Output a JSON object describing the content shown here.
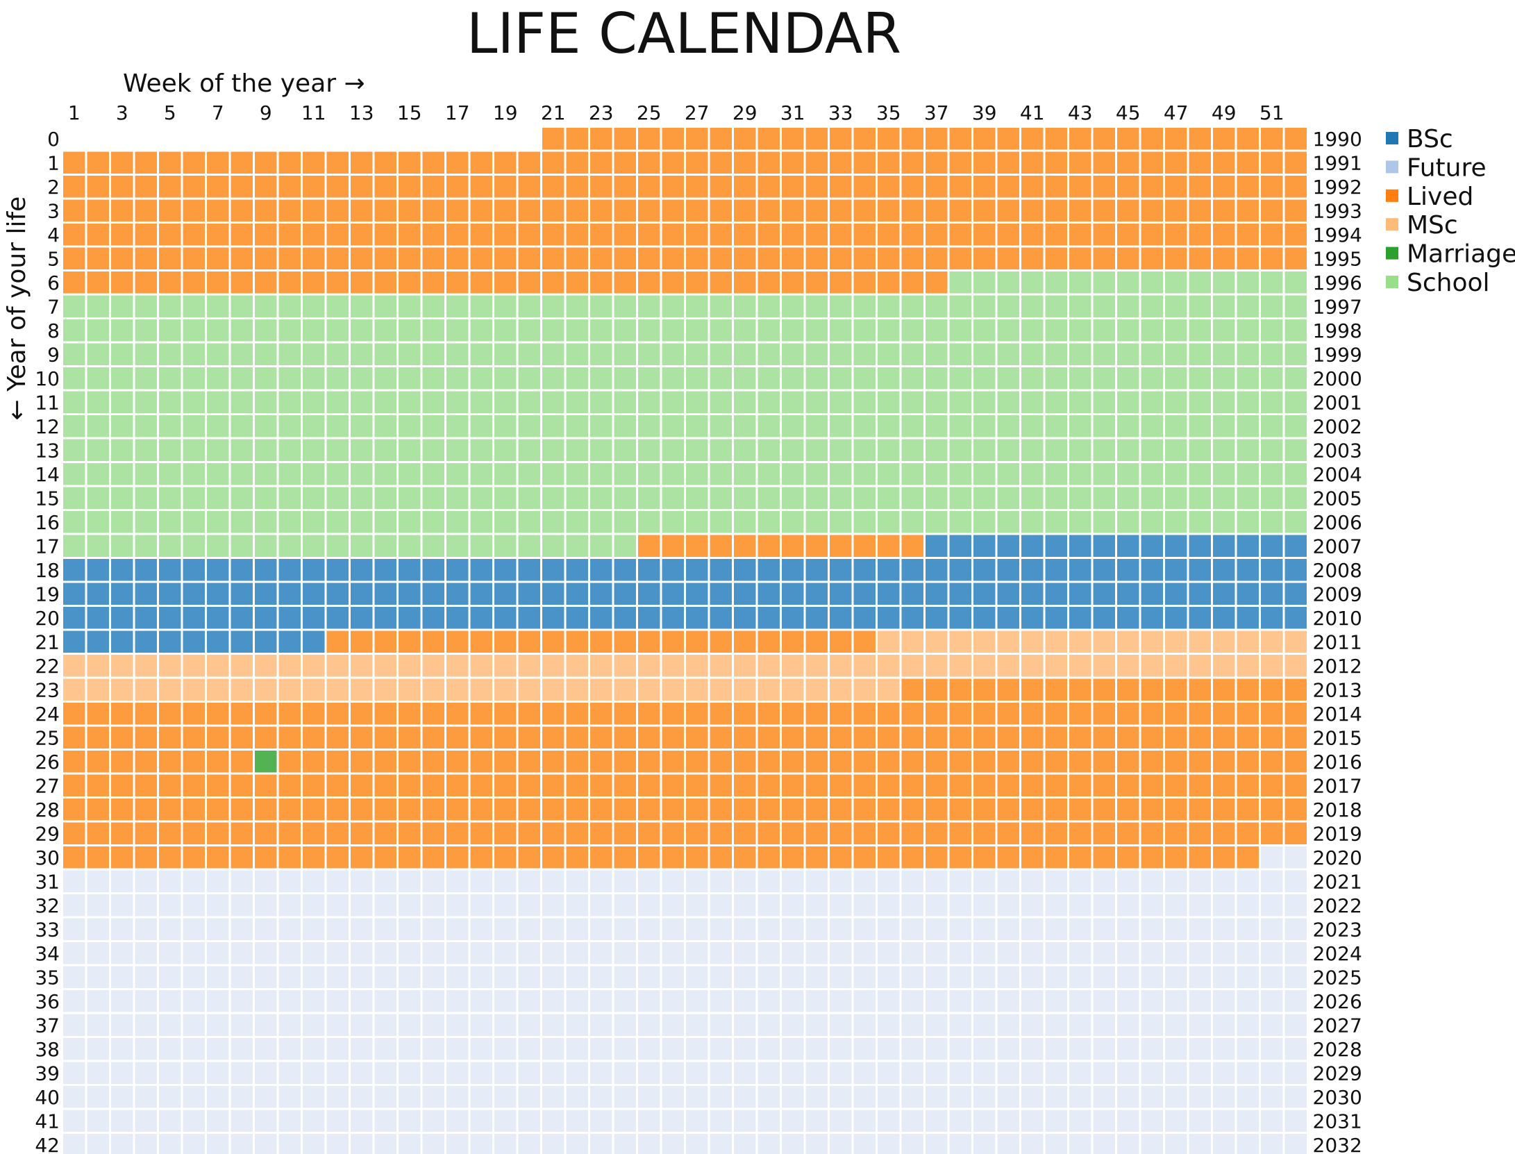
{
  "chart_data": {
    "type": "heatmap",
    "title": "LIFE CALENDAR",
    "xlabel": "Week of the year →",
    "ylabel": "← Year of your life",
    "x": {
      "min": 1,
      "max": 52,
      "tick_labels": [
        1,
        3,
        5,
        7,
        9,
        11,
        13,
        15,
        17,
        19,
        21,
        23,
        25,
        27,
        29,
        31,
        33,
        35,
        37,
        39,
        41,
        43,
        45,
        47,
        49,
        51
      ]
    },
    "y_left_labels": [
      0,
      1,
      2,
      3,
      4,
      5,
      6,
      7,
      8,
      9,
      10,
      11,
      12,
      13,
      14,
      15,
      16,
      17,
      18,
      19,
      20,
      21,
      22,
      23,
      24,
      25,
      26,
      27,
      28,
      29,
      30,
      31,
      32,
      33,
      34,
      35,
      36,
      37,
      38,
      39,
      40,
      41,
      42
    ],
    "y_right_labels": [
      1990,
      1991,
      1992,
      1993,
      1994,
      1995,
      1996,
      1997,
      1998,
      1999,
      2000,
      2001,
      2002,
      2003,
      2004,
      2005,
      2006,
      2007,
      2008,
      2009,
      2010,
      2011,
      2012,
      2013,
      2014,
      2015,
      2016,
      2017,
      2018,
      2019,
      2020,
      2021,
      2022,
      2023,
      2024,
      2025,
      2026,
      2027,
      2028,
      2029,
      2030,
      2031,
      2032
    ],
    "legend": {
      "placement": "right",
      "items": [
        {
          "name": "BSc",
          "color": "#1f77b4"
        },
        {
          "name": "Future",
          "color": "#aec7e8"
        },
        {
          "name": "Lived",
          "color": "#ff7f0e"
        },
        {
          "name": "MSc",
          "color": "#ffbb78"
        },
        {
          "name": "Marriage",
          "color": "#2ca02c"
        },
        {
          "name": "School",
          "color": "#98df8a"
        }
      ]
    },
    "cell_colors": {
      "Lived": "#fd9b3f",
      "BSc": "#4a93c8",
      "MSc": "#fec58f",
      "School": "#ace3a2",
      "Marriage": "#53b353",
      "Future": "#e6ecf7"
    },
    "periods": [
      {
        "category": "Lived",
        "start": {
          "year": 0,
          "week": 21
        },
        "end": {
          "year": 6,
          "week": 37
        }
      },
      {
        "category": "School",
        "start": {
          "year": 6,
          "week": 38
        },
        "end": {
          "year": 17,
          "week": 24
        }
      },
      {
        "category": "Lived",
        "start": {
          "year": 17,
          "week": 25
        },
        "end": {
          "year": 17,
          "week": 36
        }
      },
      {
        "category": "BSc",
        "start": {
          "year": 17,
          "week": 37
        },
        "end": {
          "year": 21,
          "week": 11
        }
      },
      {
        "category": "Lived",
        "start": {
          "year": 21,
          "week": 12
        },
        "end": {
          "year": 21,
          "week": 34
        }
      },
      {
        "category": "MSc",
        "start": {
          "year": 21,
          "week": 35
        },
        "end": {
          "year": 23,
          "week": 35
        }
      },
      {
        "category": "Lived",
        "start": {
          "year": 23,
          "week": 36
        },
        "end": {
          "year": 30,
          "week": 50
        }
      },
      {
        "category": "Marriage",
        "start": {
          "year": 26,
          "week": 9
        },
        "end": {
          "year": 26,
          "week": 9
        }
      },
      {
        "category": "Future",
        "start": {
          "year": 30,
          "week": 51
        },
        "end": {
          "year": 42,
          "week": 52
        }
      }
    ]
  }
}
